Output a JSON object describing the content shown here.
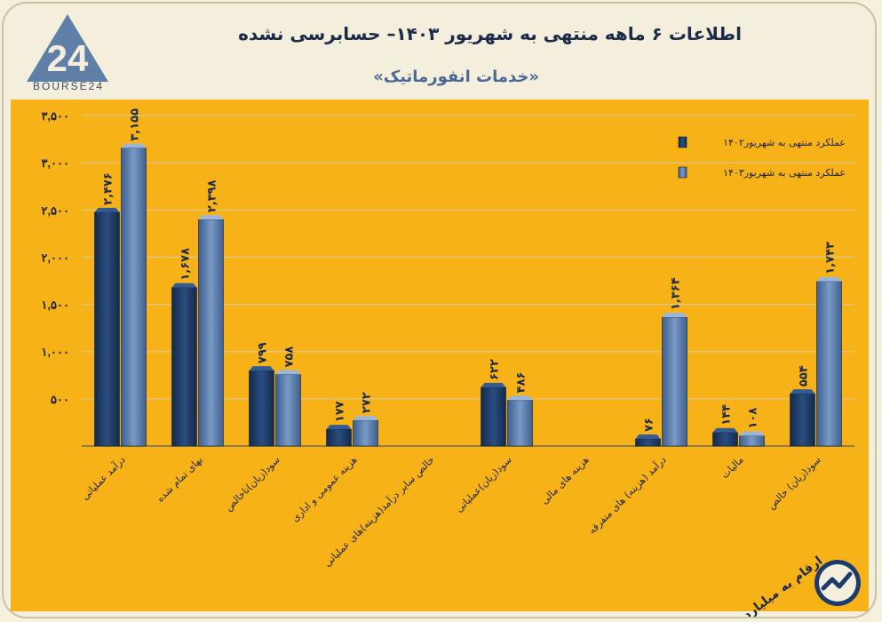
{
  "header": {
    "logo_text": "BOURSE24",
    "title": "اطلاعات ۶ ماهه منتهی به شهریور ۱۴۰۳– حسابرسی نشده",
    "subtitle": "«خدمات انفورماتیک»"
  },
  "footnote": "ارقام به میلیارد تومان",
  "colors": {
    "background": "#f7b218",
    "series_1402": "#1f3d66",
    "series_1403": "#5c7cab"
  },
  "chart_data": {
    "type": "bar",
    "ylim": [
      0,
      3500
    ],
    "yticks": [
      500,
      1000,
      1500,
      2000,
      2500,
      3000,
      3500
    ],
    "ytick_labels": [
      "۵۰۰",
      "۱,۰۰۰",
      "۱,۵۰۰",
      "۲,۰۰۰",
      "۲,۵۰۰",
      "۳,۰۰۰",
      "۳,۵۰۰"
    ],
    "grid": true,
    "legend_position": "top-right",
    "categories": [
      "درآمد عملیاتی",
      "بهای تمام شده",
      "سود(زیان)ناخالص",
      "هزینه عمومی و اداری",
      "خالص سایر درآمد(هزینه)های عملیاتی",
      "سود(زیان)عملیاتی",
      "هزینه های مالی",
      "درآمد (هزینه) های متفرقه",
      "مالیات",
      "سود(زیان) خالص"
    ],
    "series": [
      {
        "name": "عملکرد منتهی به شهریور۱۴۰۲",
        "values": [
          2476,
          1678,
          799,
          177,
          0,
          622,
          0,
          76,
          144,
          554
        ],
        "labels": [
          "۲,۴۷۶",
          "۱,۶۷۸",
          "۷۹۹",
          "۱۷۷",
          "",
          "۶۲۲",
          "",
          "۷۶",
          "۱۴۴",
          "۵۵۴"
        ]
      },
      {
        "name": "عملکرد منتهی به شهریور۱۴۰۳",
        "values": [
          3155,
          2398,
          758,
          272,
          0,
          486,
          0,
          1364,
          108,
          1743
        ],
        "labels": [
          "۳,۱۵۵",
          "۲,۳۹۸",
          "۷۵۸",
          "۲۷۲",
          "",
          "۴۸۶",
          "",
          "۱,۳۶۴",
          "۱۰۸",
          "۱,۷۴۳"
        ]
      }
    ]
  }
}
